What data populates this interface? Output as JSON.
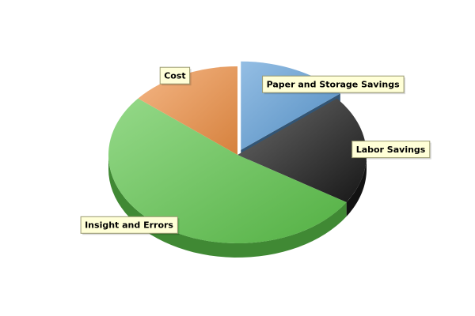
{
  "chart_data": {
    "type": "pie",
    "title": "",
    "three_d": true,
    "legend": "none",
    "slices": [
      {
        "label": "Paper and Storage Savings",
        "value": 14,
        "color": "#5b9bd5",
        "exploded": true
      },
      {
        "label": "Labor Savings",
        "value": 20,
        "color": "#1a1a1a",
        "exploded": false
      },
      {
        "label": "Insight and Errors",
        "value": 52,
        "color": "#5cc44a",
        "exploded": false
      },
      {
        "label": "Cost",
        "value": 14,
        "color": "#ee8f44",
        "exploded": false
      }
    ],
    "label_box_fill": "#ffffd7",
    "label_box_border": "#9a9a70"
  }
}
